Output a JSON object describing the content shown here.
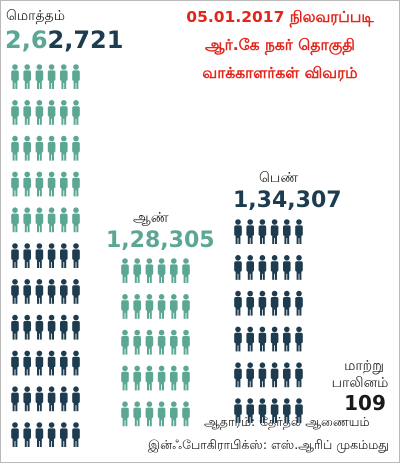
{
  "colors": {
    "teal": "#5ba794",
    "navy": "#1d3c4f",
    "red": "#e3261c",
    "text": "#1a1a1a"
  },
  "header": {
    "title_lines": [
      "05.01.2017 நிலவரப்படி",
      "ஆர்.கே  நகர் தொகுதி",
      "வாக்காளர்கள் விவரம்"
    ]
  },
  "chart_data": {
    "type": "bar",
    "categories": [
      "மொத்தம்",
      "ஆண்",
      "பெண்",
      "மாற்று பாலினம்"
    ],
    "values": [
      262721,
      128305,
      134307,
      109
    ],
    "labels": {
      "total": "மொத்தம்",
      "male": "ஆண்",
      "female": "பெண்",
      "other_line1": "மாற்று",
      "other_line2": "பாலினம்"
    },
    "display_values": {
      "total_part1": "2,6",
      "total_part2": "2,721",
      "male": "1,28,305",
      "female": "1,34,307",
      "other": "109"
    }
  },
  "footer": {
    "source": "ஆதாரம்: தேர்தல் ஆணையம்",
    "credit": "இன்ஃபோகிராபிக்ஸ்: எஸ்.ஆரிப் முகம்மது"
  }
}
